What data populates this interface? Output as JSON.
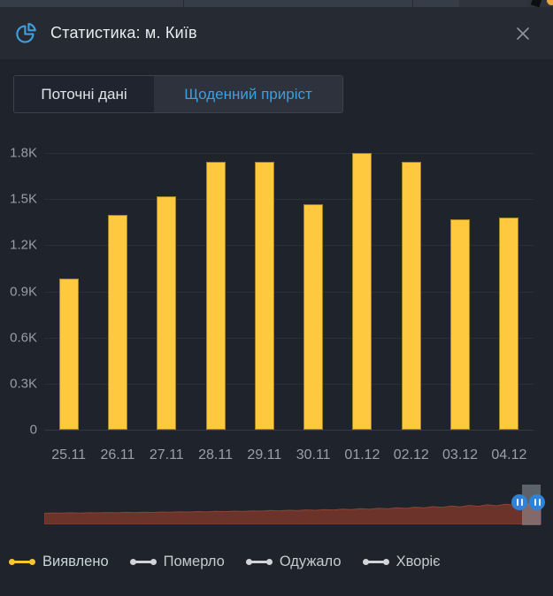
{
  "window": {
    "title": "Статистика: м. Київ"
  },
  "tabs": [
    {
      "label": "Поточні дані",
      "active": false
    },
    {
      "label": "Щоденний приріст",
      "active": true
    }
  ],
  "chart_data": {
    "type": "bar",
    "title": "Щоденний приріст — Виявлено",
    "categories": [
      "25.11",
      "26.11",
      "27.11",
      "28.11",
      "29.11",
      "30.11",
      "01.12",
      "02.12",
      "03.12",
      "04.12"
    ],
    "values": [
      985,
      1400,
      1520,
      1745,
      1745,
      1465,
      1800,
      1740,
      1370,
      1380
    ],
    "ylim": [
      0,
      1800
    ],
    "ytick_labels": [
      "0",
      "0.3K",
      "0.6K",
      "0.9K",
      "1.2K",
      "1.5K",
      "1.8K"
    ],
    "ytick_values": [
      0,
      300,
      600,
      900,
      1200,
      1500,
      1800
    ],
    "bar_color": "#fec93f",
    "grid": true,
    "legend_position": "bottom"
  },
  "minimap": {
    "color": "#6b332a",
    "edge_color": "#8a4433",
    "profile": [
      12.6,
      12.9,
      12.7,
      13.1,
      12.8,
      13.2,
      13.0,
      13.4,
      13.1,
      13.6,
      13.3,
      13.8,
      13.5,
      14.0,
      13.7,
      14.2,
      14.0,
      14.5,
      14.1,
      14.7,
      14.4,
      15.0,
      14.6,
      15.3,
      15.0,
      15.7,
      15.2,
      16.0,
      15.6,
      16.4,
      15.9,
      16.8,
      16.3,
      17.3,
      16.7,
      17.8,
      17.1,
      18.3,
      17.6,
      18.9,
      18.1,
      19.5,
      18.6,
      20.1,
      19.2,
      20.8,
      19.8,
      21.5,
      20.4,
      22.2,
      21.0,
      22.9,
      21.7,
      23.6,
      22.4,
      24.0
    ]
  },
  "legend": [
    {
      "label": "Виявлено",
      "color": "#fcc52f",
      "text_color": "#c8d6d8",
      "active": true
    },
    {
      "label": "Померло",
      "color": "#d2d4d8",
      "text_color": "#c6c9cd",
      "active": false
    },
    {
      "label": "Одужало",
      "color": "#d2d4d8",
      "text_color": "#c6c9cd",
      "active": false
    },
    {
      "label": "Хворіє",
      "color": "#d2d4d8",
      "text_color": "#c6c9cd",
      "active": false
    }
  ],
  "colors": {
    "accent_blue": "#3b9fe3",
    "bar_yellow": "#fec93f",
    "minimap_red": "#6b332a",
    "handle_blue": "#2e82d8",
    "header_bg": "#262b33",
    "body_bg": "#1f232b"
  }
}
